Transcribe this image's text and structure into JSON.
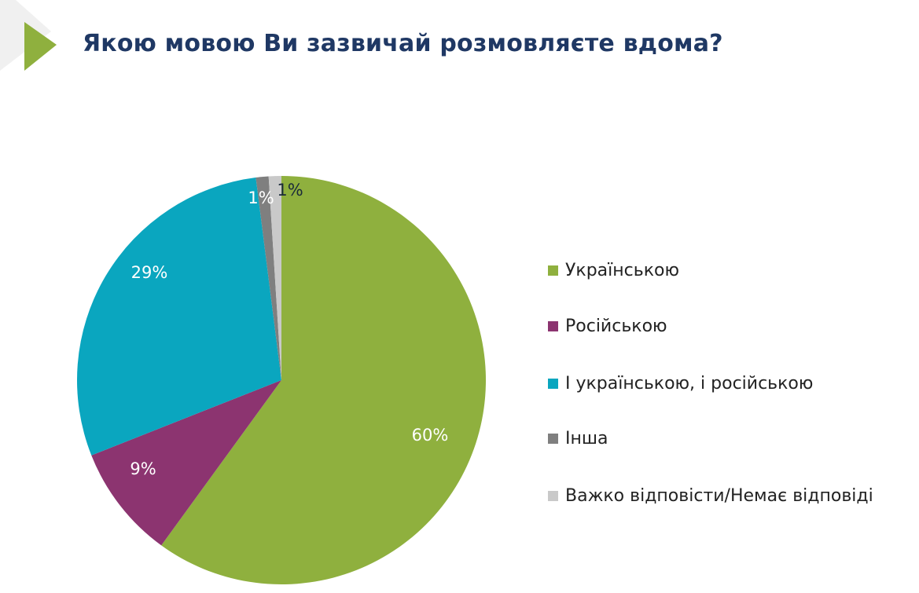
{
  "title": "Якою мовою Ви зазвичай розмовляєте вдома?",
  "chart_data": {
    "type": "pie",
    "title": "Якою мовою Ви зазвичай розмовляєте вдома?",
    "legend_position": "right",
    "slices": [
      {
        "label": "Українською",
        "value": 60,
        "display": "60%",
        "color": "#8fb03e",
        "label_color": "#ffffff"
      },
      {
        "label": "Російською",
        "value": 9,
        "display": "9%",
        "color": "#8c3470",
        "label_color": "#ffffff"
      },
      {
        "label": "І українською, і російською",
        "value": 29,
        "display": "29%",
        "color": "#0aa6bf",
        "label_color": "#ffffff"
      },
      {
        "label": "Інша",
        "value": 1,
        "display": "1%",
        "color": "#7f7f7f",
        "label_color": "#ffffff"
      },
      {
        "label": "Важко відповісти/Немає відповіді",
        "value": 1,
        "display": "1%",
        "color": "#c9c9c9",
        "label_color": "#1a2a3a"
      }
    ]
  }
}
